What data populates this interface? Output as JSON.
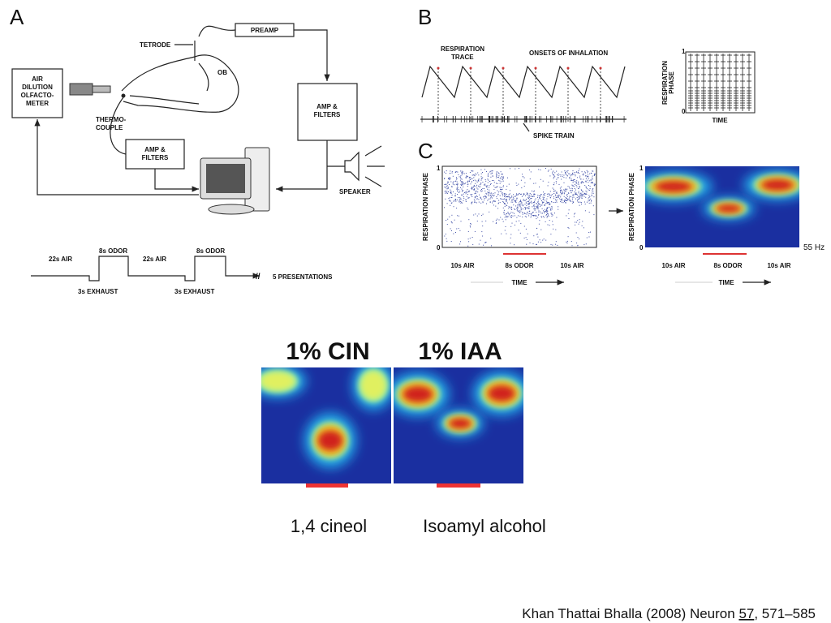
{
  "panel_a": {
    "label": "A",
    "olfactometer": [
      "AIR",
      "DILUTION",
      "OLFACTO-",
      "METER"
    ],
    "tetrode": "TETRODE",
    "preamp": "PREAMP",
    "ob": "OB",
    "thermocouple": [
      "THERMO-",
      "COUPLE"
    ],
    "amp_filters_right": [
      "AMP &",
      "FILTERS"
    ],
    "amp_filters_left": [
      "AMP &",
      "FILTERS"
    ],
    "speaker": "SPEAKER",
    "timeline": {
      "air_1": "22s AIR",
      "odor_1": "8s ODOR",
      "air_2": "22s AIR",
      "odor_2": "8s ODOR",
      "exhaust_1": "3s EXHAUST",
      "exhaust_2": "3s EXHAUST",
      "presentations": "5 PRESENTATIONS"
    }
  },
  "panel_b": {
    "label": "B",
    "respiration_trace": [
      "RESPIRATION",
      "TRACE"
    ],
    "onsets": "ONSETS OF INHALATION",
    "spike_train": "SPIKE TRAIN",
    "raster": {
      "y_label": [
        "RESPIRATION",
        "PHASE"
      ],
      "y_max": 1,
      "y_min": 0,
      "x_label": "TIME"
    }
  },
  "panel_c": {
    "label": "C",
    "left": {
      "y_label": "RESPIRATION PHASE",
      "y_max": 1,
      "y_min": 0,
      "x_labels": [
        "10s AIR",
        "8s ODOR",
        "10s AIR"
      ],
      "x_label": "TIME"
    },
    "right": {
      "y_label": "RESPIRATION PHASE",
      "y_max": 1,
      "y_min": 0,
      "x_labels": [
        "10s AIR",
        "8s ODOR",
        "10s AIR"
      ],
      "x_label": "TIME",
      "scale": "55 Hz"
    }
  },
  "comparison": {
    "titles": [
      "1% CIN",
      "1% IAA"
    ],
    "names": [
      "1,4 cineol",
      "Isoamyl alcohol"
    ]
  },
  "citation": {
    "authors": "Khan Thattai Bhalla (2008) Neuron ",
    "volume": "57",
    "pages": ", 571–585"
  }
}
